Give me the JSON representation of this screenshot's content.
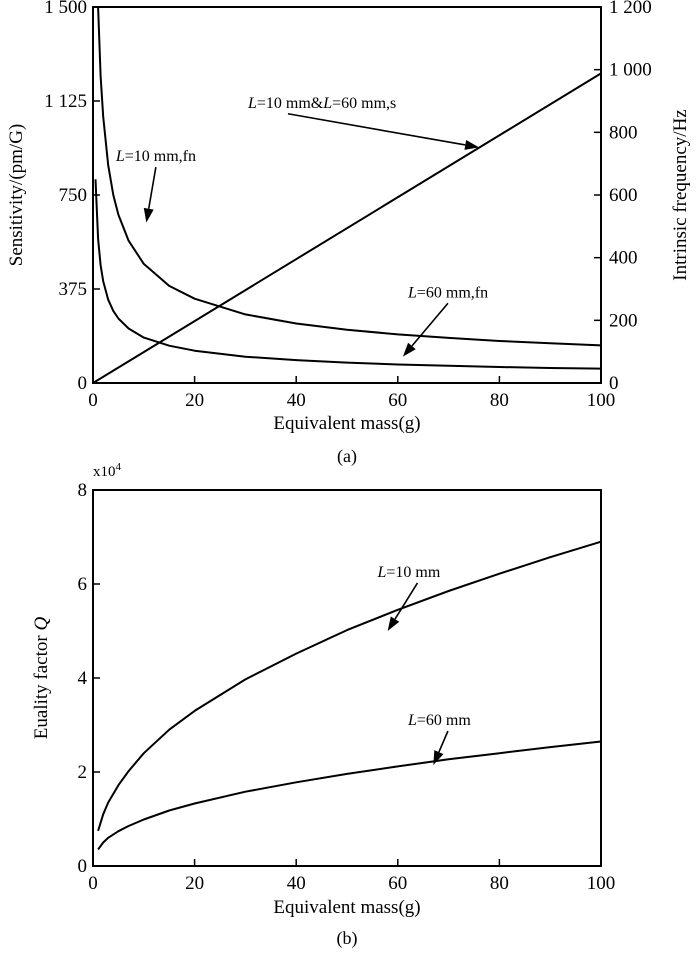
{
  "chart_data": [
    {
      "panel": "(a)",
      "type": "line",
      "xlabel": "Equivalent mass(g)",
      "ylabel": "Sensitivity/(pm/G)",
      "y2label": "Intrinsic frequency/Hz",
      "xlim": [
        0,
        100
      ],
      "ylim": [
        0,
        1500
      ],
      "y2lim": [
        0,
        1200
      ],
      "xticks": [
        "0",
        "20",
        "40",
        "60",
        "80",
        "100"
      ],
      "yticks": [
        "0",
        "375",
        "750",
        "1 125",
        "1 500"
      ],
      "y2ticks": [
        "0",
        "200",
        "400",
        "600",
        "800",
        "1 000",
        "1 200"
      ],
      "grid": false,
      "series": [
        {
          "label": "L=10 mm,fn",
          "axis": "right",
          "x": [
            1,
            1.5,
            2,
            3,
            4,
            5,
            7,
            10,
            15,
            20,
            30,
            40,
            50,
            60,
            70,
            80,
            90,
            100
          ],
          "y": [
            1200,
            980,
            850,
            695,
            600,
            537,
            454,
            380,
            310,
            269,
            219,
            190,
            170,
            155,
            144,
            134,
            127,
            120
          ]
        },
        {
          "label": "L=60 mm,fn",
          "axis": "right",
          "x": [
            0.5,
            1,
            1.5,
            2,
            3,
            4,
            5,
            7,
            10,
            15,
            20,
            30,
            40,
            50,
            60,
            70,
            80,
            90,
            100
          ],
          "y": [
            650,
            460,
            376,
            325,
            266,
            230,
            206,
            174,
            145,
            119,
            103,
            84,
            73,
            65,
            59,
            55,
            51,
            48,
            46
          ]
        },
        {
          "label": "L=10 mm&L=60 mm,s",
          "axis": "left",
          "x": [
            0,
            100
          ],
          "y": [
            0,
            1235
          ]
        }
      ],
      "annotations": [
        {
          "text_parts": [
            "L",
            "=10 mm,fn"
          ],
          "x_text": 4.5,
          "y_text": 885,
          "x_arrow": 10.5,
          "y_arrow": 640
        },
        {
          "text_parts": [
            "L",
            "=60 mm,fn"
          ],
          "x_text": 62,
          "y_text": 342,
          "x_arrow": 61,
          "y_arrow": 105
        },
        {
          "text_parts": [
            "L",
            "=10 mm&",
            "L",
            "=60 mm,s"
          ],
          "x_text": 30.5,
          "y_text": 1098,
          "x_arrow": 76,
          "y_arrow": 940
        }
      ]
    },
    {
      "panel": "(b)",
      "type": "line",
      "xlabel": "Equivalent mass(g)",
      "ylabel_parts": [
        "Euality factor ",
        "Q"
      ],
      "multiplier_parts": [
        "x10",
        "4"
      ],
      "xlim": [
        0,
        100
      ],
      "ylim": [
        0,
        8
      ],
      "xticks": [
        "0",
        "20",
        "40",
        "60",
        "80",
        "100"
      ],
      "yticks": [
        "0",
        "2",
        "4",
        "6",
        "8"
      ],
      "grid": false,
      "series": [
        {
          "label": "L=10 mm",
          "x": [
            1,
            2,
            3,
            5,
            7,
            10,
            15,
            20,
            30,
            40,
            50,
            60,
            70,
            80,
            90,
            100
          ],
          "y": [
            0.75,
            1.1,
            1.35,
            1.72,
            2.02,
            2.4,
            2.9,
            3.3,
            3.97,
            4.52,
            5.02,
            5.45,
            5.85,
            6.22,
            6.57,
            6.9
          ]
        },
        {
          "label": "L=60 mm",
          "x": [
            1,
            2,
            3,
            5,
            7,
            10,
            15,
            20,
            30,
            40,
            50,
            60,
            70,
            80,
            90,
            100
          ],
          "y": [
            0.35,
            0.5,
            0.6,
            0.74,
            0.85,
            0.99,
            1.18,
            1.33,
            1.58,
            1.78,
            1.96,
            2.12,
            2.27,
            2.4,
            2.53,
            2.65
          ]
        }
      ],
      "annotations": [
        {
          "text_parts": [
            "L",
            "=10 mm"
          ],
          "x_text": 56,
          "y_text": 6.15,
          "x_arrow": 58,
          "y_arrow": 5.0
        },
        {
          "text_parts": [
            "L",
            "=60 mm"
          ],
          "x_text": 62,
          "y_text": 3.0,
          "x_arrow": 67,
          "y_arrow": 2.15
        }
      ]
    }
  ]
}
